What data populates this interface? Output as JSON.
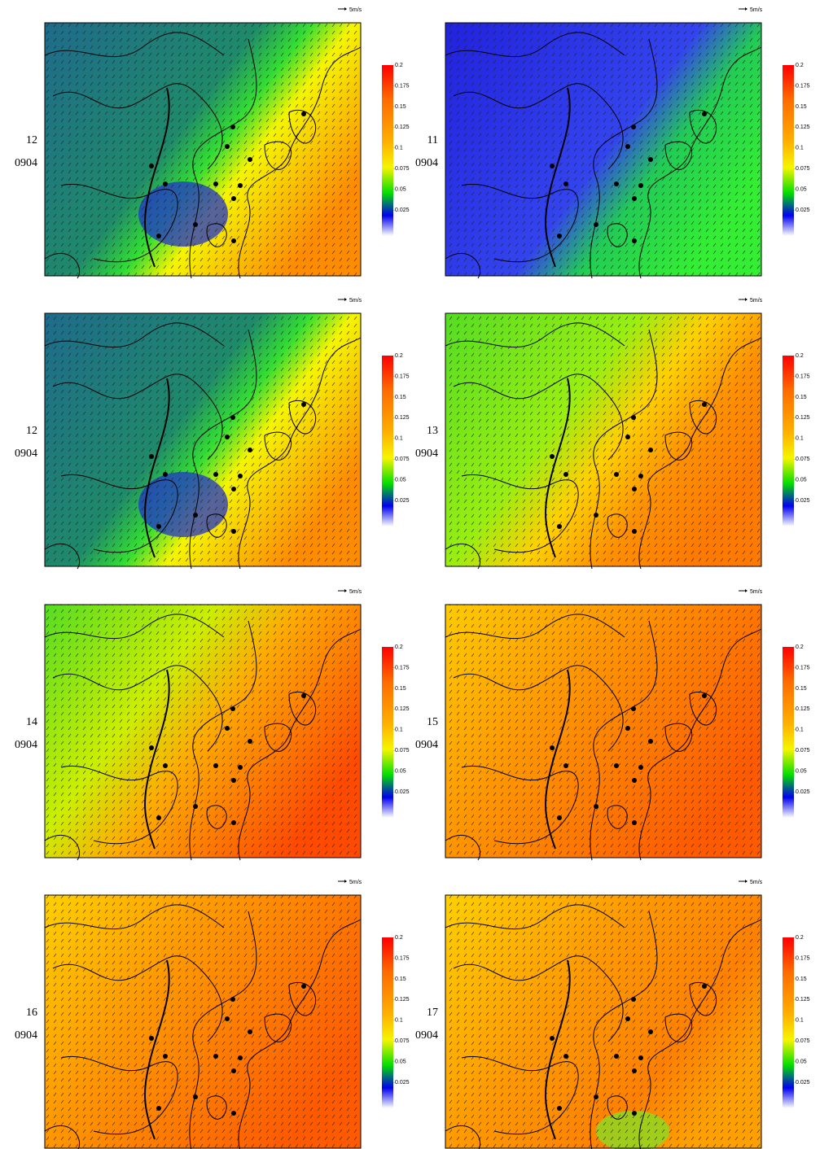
{
  "scale_label": "5m/s",
  "colorbar": {
    "ticks": [
      0.2,
      0.175,
      0.15,
      0.125,
      0.1,
      0.075,
      0.05,
      0.025
    ]
  },
  "panels": [
    {
      "hour": "12",
      "date": "0904"
    },
    {
      "hour": "11",
      "date": "0904"
    },
    {
      "hour": "12",
      "date": "0904"
    },
    {
      "hour": "13",
      "date": "0904"
    },
    {
      "hour": "14",
      "date": "0904"
    },
    {
      "hour": "15",
      "date": "0904"
    },
    {
      "hour": "16",
      "date": "0904"
    },
    {
      "hour": "17",
      "date": "0904"
    }
  ]
}
